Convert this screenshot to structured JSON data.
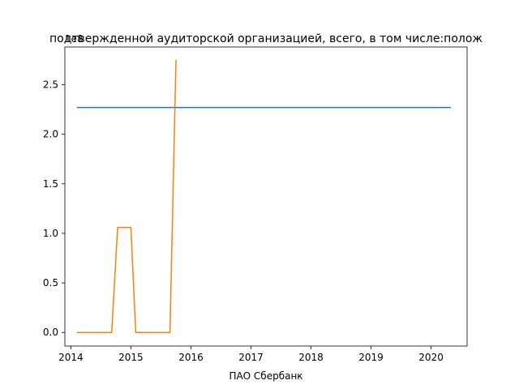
{
  "chart_data": {
    "type": "line",
    "title": "подтвержденной аудиторской организацией, всего, в том числе:полож",
    "xlabel": "ПАО Сбербанк",
    "ylabel": "",
    "y_offset_text": "1e8",
    "xlim": [
      2013.9,
      2020.6
    ],
    "ylim": [
      -0.137,
      2.88
    ],
    "x_ticks": [
      2014,
      2015,
      2016,
      2017,
      2018,
      2019,
      2020
    ],
    "x_tick_labels": [
      "2014",
      "2015",
      "2016",
      "2017",
      "2018",
      "2019",
      "2020"
    ],
    "y_ticks": [
      0.0,
      0.5,
      1.0,
      1.5,
      2.0,
      2.5
    ],
    "y_tick_labels": [
      "0.0",
      "0.5",
      "1.0",
      "1.5",
      "2.0",
      "2.5"
    ],
    "grid": false,
    "series": [
      {
        "color": "#1f77b4",
        "x": [
          2014.1,
          2020.33
        ],
        "y": [
          2.27,
          2.27
        ]
      },
      {
        "color": "#ff7f0e",
        "x": [
          2014.1,
          2014.68,
          2014.78,
          2015.0,
          2015.08,
          2015.65,
          2015.75
        ],
        "y": [
          0.0,
          0.0,
          1.06,
          1.06,
          0.0,
          0.0,
          2.75
        ]
      }
    ]
  }
}
